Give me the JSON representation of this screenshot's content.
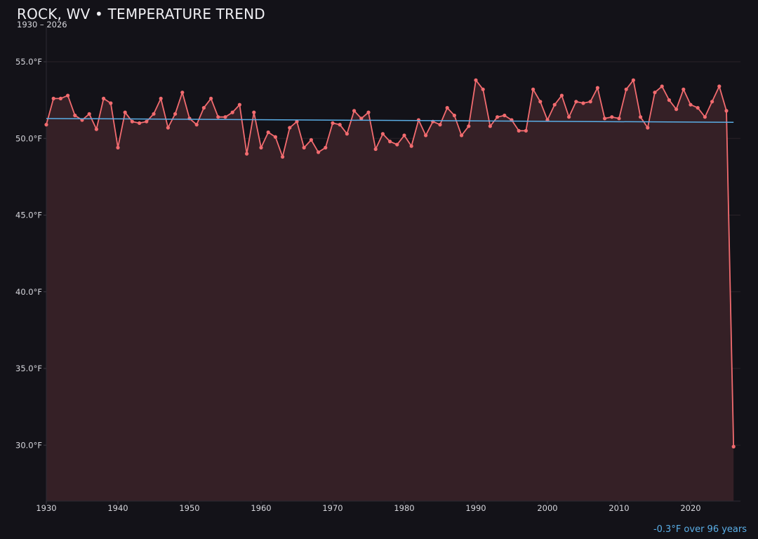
{
  "header": {
    "title": "ROCK, WV • TEMPERATURE TREND",
    "subtitle": "1930 – 2026"
  },
  "footer": {
    "trend_note": "-0.3°F over 96 years"
  },
  "colors": {
    "background": "#131218",
    "series_line": "#f26b6f",
    "series_fill": "#352026",
    "trend_line": "#5aaee6",
    "grid": "#2a2329",
    "axis_text": "#d6d6dc"
  },
  "chart_data": {
    "type": "line",
    "title": "ROCK, WV • TEMPERATURE TREND",
    "subtitle": "1930 – 2026",
    "xlabel": "",
    "ylabel": "",
    "xlim": [
      1930,
      2027
    ],
    "ylim": [
      26.5,
      56.5
    ],
    "x_ticks": [
      1930,
      1940,
      1950,
      1960,
      1970,
      1980,
      1990,
      2000,
      2010,
      2020
    ],
    "y_ticks": [
      30,
      35,
      40,
      45,
      50,
      55
    ],
    "y_tick_labels": [
      "30.0°F",
      "35.0°F",
      "40.0°F",
      "45.0°F",
      "50.0°F",
      "55.0°F"
    ],
    "grid": true,
    "legend": null,
    "annotation": "-0.3°F over 96 years",
    "x": [
      1930,
      1931,
      1932,
      1933,
      1934,
      1935,
      1936,
      1937,
      1938,
      1939,
      1940,
      1941,
      1942,
      1943,
      1944,
      1945,
      1946,
      1947,
      1948,
      1949,
      1950,
      1951,
      1952,
      1953,
      1954,
      1955,
      1956,
      1957,
      1958,
      1959,
      1960,
      1961,
      1962,
      1963,
      1964,
      1965,
      1966,
      1967,
      1968,
      1969,
      1970,
      1971,
      1972,
      1973,
      1974,
      1975,
      1976,
      1977,
      1978,
      1979,
      1980,
      1981,
      1982,
      1983,
      1984,
      1985,
      1986,
      1987,
      1988,
      1989,
      1990,
      1991,
      1992,
      1993,
      1994,
      1995,
      1996,
      1997,
      1998,
      1999,
      2000,
      2001,
      2002,
      2003,
      2004,
      2005,
      2006,
      2007,
      2008,
      2009,
      2010,
      2011,
      2012,
      2013,
      2014,
      2015,
      2016,
      2017,
      2018,
      2019,
      2020,
      2021,
      2022,
      2023,
      2024,
      2025,
      2026
    ],
    "series": [
      {
        "name": "Annual mean temperature (°F)",
        "values": [
          50.9,
          52.6,
          52.6,
          52.8,
          51.5,
          51.2,
          51.6,
          50.6,
          52.6,
          52.3,
          49.4,
          51.7,
          51.1,
          51.0,
          51.1,
          51.6,
          52.6,
          50.7,
          51.6,
          53.0,
          51.3,
          50.9,
          52.0,
          52.6,
          51.4,
          51.4,
          51.7,
          52.2,
          49.0,
          51.7,
          49.4,
          50.4,
          50.1,
          48.8,
          50.7,
          51.1,
          49.4,
          49.9,
          49.1,
          49.4,
          51.0,
          50.9,
          50.3,
          51.8,
          51.3,
          51.7,
          49.3,
          50.3,
          49.8,
          49.6,
          50.2,
          49.5,
          51.2,
          50.2,
          51.1,
          50.9,
          52.0,
          51.5,
          50.2,
          50.8,
          53.8,
          53.2,
          50.8,
          51.4,
          51.5,
          51.2,
          50.5,
          50.5,
          53.2,
          52.4,
          51.2,
          52.2,
          52.8,
          51.4,
          52.4,
          52.3,
          52.4,
          53.3,
          51.3,
          51.4,
          51.3,
          53.2,
          53.8,
          51.4,
          50.7,
          53.0,
          53.4,
          52.5,
          51.9,
          53.2,
          52.2,
          52.0,
          51.4,
          52.4,
          53.4,
          51.8,
          29.9
        ]
      },
      {
        "name": "Linear trend",
        "type": "line",
        "x": [
          1930,
          2026
        ],
        "values": [
          51.3,
          51.05
        ]
      }
    ]
  }
}
